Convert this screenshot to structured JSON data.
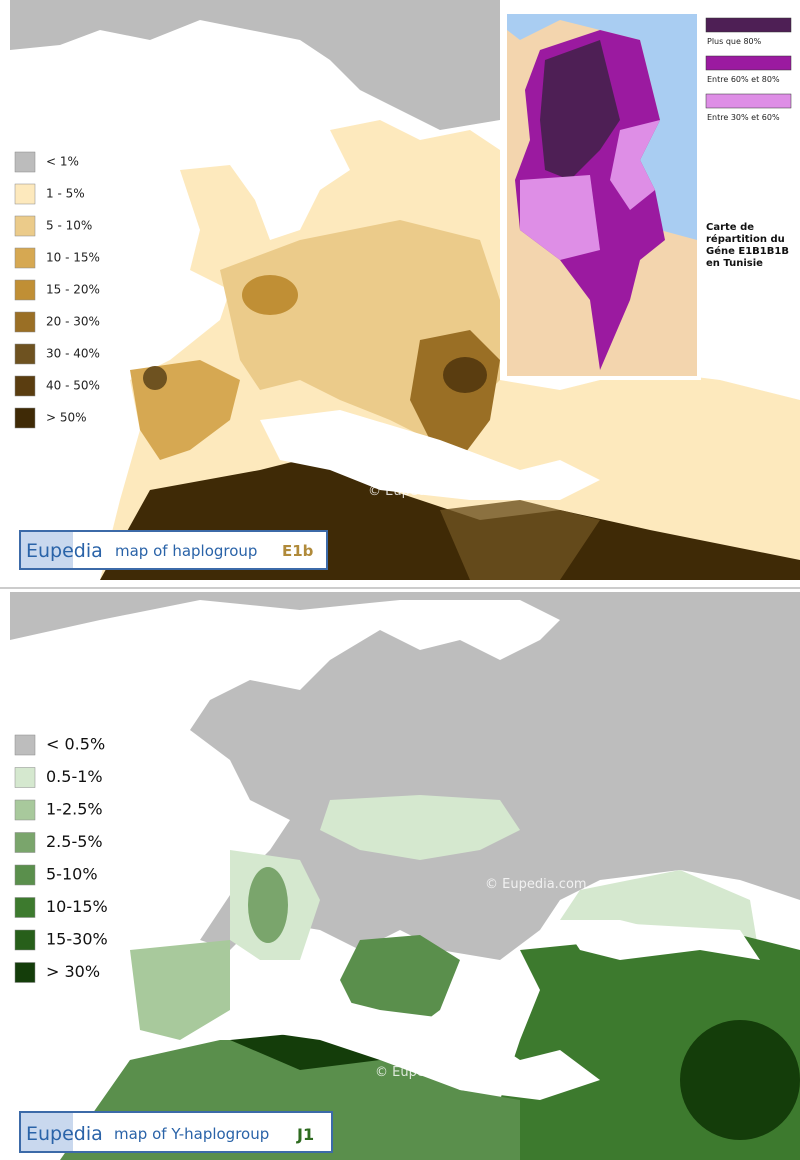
{
  "maps": [
    {
      "legend": [
        {
          "label": "< 1%",
          "color": "#bcbcbc"
        },
        {
          "label": "1 - 5%",
          "color": "#fde9bd"
        },
        {
          "label": "5 - 10%",
          "color": "#ebcb8a"
        },
        {
          "label": "10 - 15%",
          "color": "#d6a852"
        },
        {
          "label": "15 - 20%",
          "color": "#c08f35"
        },
        {
          "label": "20 - 30%",
          "color": "#9a6f25"
        },
        {
          "label": "30 - 40%",
          "color": "#6e5220"
        },
        {
          "label": "40 - 50%",
          "color": "#5a3d10"
        },
        {
          "label": "> 50%",
          "color": "#3f2a06"
        }
      ],
      "inset": {
        "legend": [
          {
            "label": "Plus que 80%",
            "color": "#4e1f55"
          },
          {
            "label": "Entre 60% et 80%",
            "color": "#9b1aa0"
          },
          {
            "label": "Entre 30% et 60%",
            "color": "#de8ee6"
          }
        ],
        "caption": [
          "Carte de",
          "répartition du",
          "Géne E1B1B1B",
          "en Tunisie"
        ]
      },
      "watermark": "© Eupedia.com",
      "banner": {
        "brand": "Eupedia",
        "text": "map of haplogroup",
        "haplogroup": "E1b"
      }
    },
    {
      "legend": [
        {
          "label": "< 0.5%",
          "color": "#bdbdbd"
        },
        {
          "label": "0.5-1%",
          "color": "#d5e8cf"
        },
        {
          "label": "1-2.5%",
          "color": "#a8c99c"
        },
        {
          "label": "2.5-5%",
          "color": "#7aa56c"
        },
        {
          "label": "5-10%",
          "color": "#5a8f4c"
        },
        {
          "label": "10-15%",
          "color": "#3d7a2e"
        },
        {
          "label": "15-30%",
          "color": "#275f1a"
        },
        {
          "label": "> 30%",
          "color": "#143d0a"
        }
      ],
      "watermarks": [
        "© Eupedia.com",
        "© Eupedia.com"
      ],
      "banner": {
        "brand": "Eupedia",
        "text": "map of Y-haplogroup",
        "haplogroup": "J1"
      }
    }
  ]
}
